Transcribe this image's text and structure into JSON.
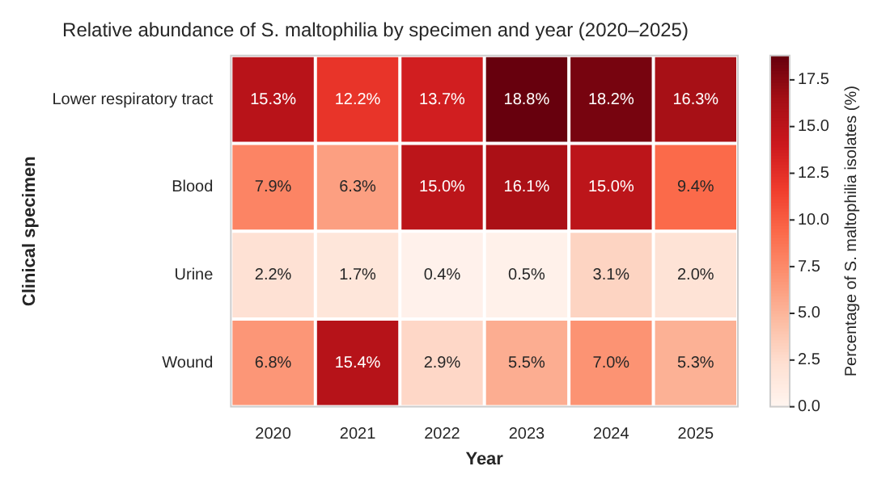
{
  "chart_data": {
    "type": "heatmap",
    "title": "Relative abundance of S. maltophilia by specimen and year (2020–2025)",
    "xlabel": "Year",
    "ylabel": "Clinical specimen",
    "clabel": "Percentage of S. maltophilia isolates (%)",
    "categories": [
      "2020",
      "2021",
      "2022",
      "2023",
      "2024",
      "2025"
    ],
    "y_categories": [
      "Lower respiratory tract",
      "Blood",
      "Urine",
      "Wound"
    ],
    "cells": [
      [
        15.3,
        12.2,
        13.7,
        18.8,
        18.2,
        16.3
      ],
      [
        7.9,
        6.3,
        15.0,
        16.1,
        15.0,
        9.4
      ],
      [
        2.2,
        1.7,
        0.4,
        0.5,
        3.1,
        2.0
      ],
      [
        6.8,
        15.4,
        2.9,
        5.5,
        7.0,
        5.3
      ]
    ],
    "cell_labels": [
      [
        "15.3%",
        "12.2%",
        "13.7%",
        "18.8%",
        "18.2%",
        "16.3%"
      ],
      [
        "7.9%",
        "6.3%",
        "15.0%",
        "16.1%",
        "15.0%",
        "9.4%"
      ],
      [
        "2.2%",
        "1.7%",
        "0.4%",
        "0.5%",
        "3.1%",
        "2.0%"
      ],
      [
        "6.8%",
        "15.4%",
        "2.9%",
        "5.5%",
        "7.0%",
        "5.3%"
      ]
    ],
    "clim": [
      0,
      18.8
    ],
    "cticks": [
      {
        "value": 0,
        "label": "0.0"
      },
      {
        "value": 2.5,
        "label": "2.5"
      },
      {
        "value": 5,
        "label": "5.0"
      },
      {
        "value": 7.5,
        "label": "7.5"
      },
      {
        "value": 10,
        "label": "10.0"
      },
      {
        "value": 12.5,
        "label": "12.5"
      },
      {
        "value": 15,
        "label": "15.0"
      },
      {
        "value": 17.5,
        "label": "17.5"
      }
    ]
  }
}
